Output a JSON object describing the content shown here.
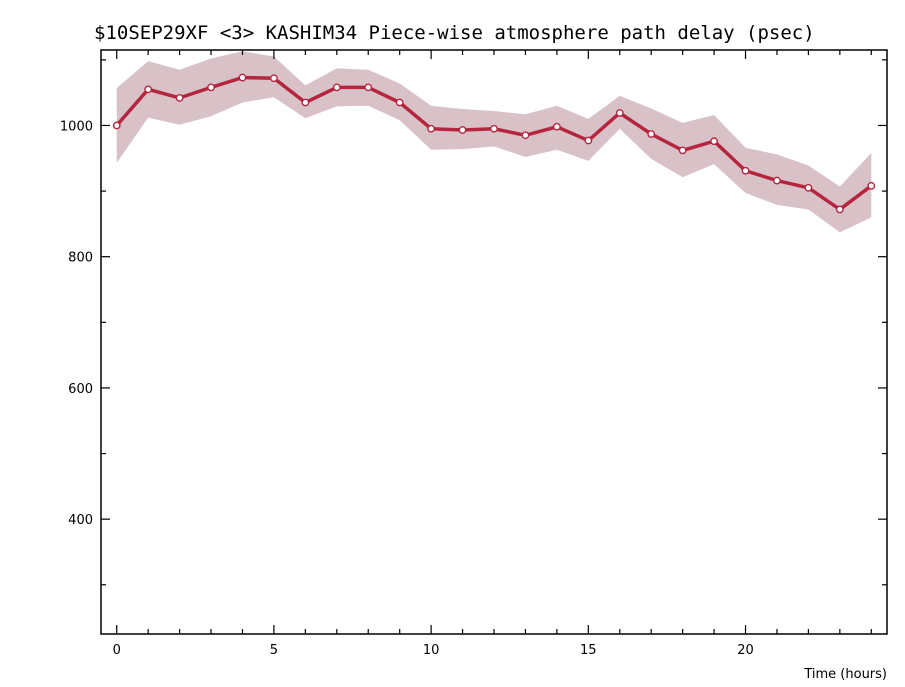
{
  "chart_data": {
    "type": "line",
    "title": "$10SEP29XF <3>  KASHIM34  Piece-wise atmosphere path delay (psec)",
    "xlabel": "Time (hours)",
    "ylabel": "",
    "xlim": [
      -0.5,
      24.5
    ],
    "ylim": [
      225,
      1115
    ],
    "x_major_ticks": [
      0,
      5,
      10,
      15,
      20
    ],
    "x_minor_ticks": [
      1,
      2,
      3,
      4,
      6,
      7,
      8,
      9,
      11,
      12,
      13,
      14,
      16,
      17,
      18,
      19,
      21,
      22,
      23,
      24
    ],
    "y_major_ticks": [
      400,
      600,
      800,
      1000
    ],
    "y_minor_ticks": [
      300,
      500,
      700,
      900,
      1100
    ],
    "grid": false,
    "series": [
      {
        "x": [
          0,
          1,
          2,
          3,
          4,
          5,
          6,
          7,
          8,
          9,
          10,
          11,
          12,
          13,
          14,
          15,
          16,
          17,
          18,
          19,
          20,
          21,
          22,
          23,
          24
        ],
        "values": [
          1000,
          1055,
          1042,
          1058,
          1073,
          1072,
          1035,
          1058,
          1058,
          1035,
          995,
          993,
          995,
          985,
          998,
          977,
          1019,
          987,
          962,
          976,
          931,
          916,
          905,
          872,
          908
        ],
        "upper": [
          1057,
          1098,
          1085,
          1102,
          1113,
          1105,
          1061,
          1087,
          1085,
          1064,
          1030,
          1025,
          1022,
          1017,
          1030,
          1010,
          1045,
          1026,
          1004,
          1016,
          966,
          956,
          939,
          907,
          958
        ],
        "lower": [
          943,
          1012,
          1001,
          1014,
          1035,
          1043,
          1011,
          1029,
          1030,
          1008,
          963,
          964,
          968,
          952,
          963,
          946,
          995,
          949,
          921,
          941,
          897,
          879,
          872,
          837,
          860
        ]
      }
    ],
    "colors": {
      "line": "#b5253f",
      "band": "#d9c2c7",
      "marker_fill": "#ffffff"
    }
  }
}
